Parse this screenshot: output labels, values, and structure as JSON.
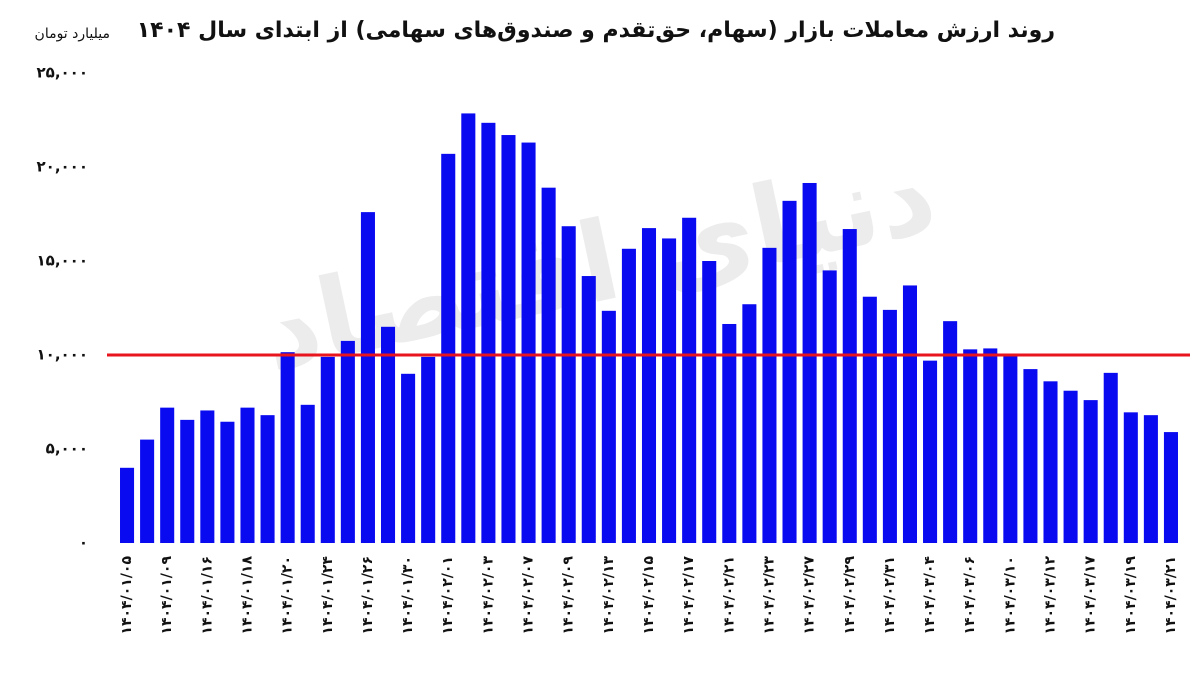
{
  "chart_data": {
    "type": "bar",
    "title": "روند ارزش معاملات بازار (سهام، حق‌تقدم و صندوق‌های سهامی) از ابتدای سال ۱۴۰۴",
    "y_label": "میلیارد تومان",
    "watermark": "دنیای اقتصاد",
    "color": "#0a0af0",
    "reference_line": {
      "value": 10000,
      "color": "#e8141e"
    },
    "categories": [
      "۱۴۰۴/۰۱/۰۵",
      null,
      "۱۴۰۴/۰۱/۰۹",
      null,
      "۱۴۰۴/۰۱/۱۶",
      null,
      "۱۴۰۴/۰۱/۱۸",
      null,
      "۱۴۰۴/۰۱/۲۰",
      null,
      "۱۴۰۴/۰۱/۲۴",
      null,
      "۱۴۰۴/۰۱/۲۶",
      null,
      "۱۴۰۴/۰۱/۳۰",
      null,
      "۱۴۰۴/۰۲/۰۱",
      null,
      "۱۴۰۴/۰۲/۰۳",
      null,
      "۱۴۰۴/۰۲/۰۷",
      null,
      "۱۴۰۴/۰۲/۰۹",
      null,
      "۱۴۰۴/۰۲/۱۳",
      null,
      "۱۴۰۴/۰۲/۱۵",
      null,
      "۱۴۰۴/۰۲/۱۷",
      null,
      "۱۴۰۴/۰۲/۲۱",
      null,
      "۱۴۰۴/۰۲/۲۳",
      null,
      "۱۴۰۴/۰۲/۲۷",
      null,
      "۱۴۰۴/۰۲/۲۹",
      null,
      "۱۴۰۴/۰۲/۳۱",
      null,
      "۱۴۰۴/۰۳/۰۴",
      null,
      "۱۴۰۴/۰۳/۰۶",
      null,
      "۱۴۰۴/۰۳/۱۰",
      null,
      "۱۴۰۴/۰۳/۱۲",
      null,
      "۱۴۰۴/۰۳/۱۷",
      null,
      "۱۴۰۴/۰۳/۱۹",
      null,
      "۱۴۰۴/۰۳/۲۱"
    ],
    "values": [
      4000,
      5500,
      7200,
      6550,
      7050,
      6450,
      7200,
      6800,
      10150,
      7350,
      9900,
      10750,
      17600,
      11500,
      9000,
      9900,
      20700,
      22850,
      22350,
      21700,
      21300,
      18900,
      16850,
      14200,
      12350,
      15650,
      16750,
      16200,
      17300,
      15000,
      11650,
      12700,
      15700,
      18200,
      19150,
      14500,
      16700,
      13100,
      12400,
      13700,
      9700,
      11800,
      10300,
      10350,
      10000,
      9250,
      8600,
      8100,
      7600,
      9050,
      6950,
      6800,
      5900
    ],
    "ylim": [
      0,
      25000
    ],
    "yticks": [
      {
        "value": 0,
        "label": "۰"
      },
      {
        "value": 5000,
        "label": "۵,۰۰۰"
      },
      {
        "value": 10000,
        "label": "۱۰,۰۰۰"
      },
      {
        "value": 15000,
        "label": "۱۵,۰۰۰"
      },
      {
        "value": 20000,
        "label": "۲۰,۰۰۰"
      },
      {
        "value": 25000,
        "label": "۲۵,۰۰۰"
      }
    ],
    "grid": false
  }
}
